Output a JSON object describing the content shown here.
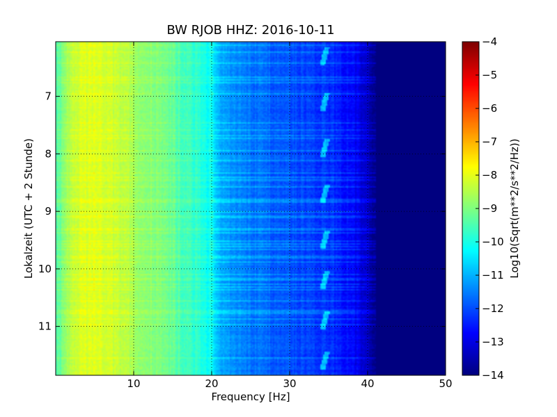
{
  "chart_data": {
    "type": "heatmap",
    "title": "BW RJOB HHZ: 2016-10-11",
    "xlabel": "Frequency [Hz]",
    "ylabel": "Lokalzeit (UTC + 2 Stunde)",
    "xlim": [
      0,
      50
    ],
    "ylim": [
      6.05,
      11.85
    ],
    "y_inverted": true,
    "x_ticks": [
      10,
      20,
      30,
      40,
      50
    ],
    "y_ticks": [
      7,
      8,
      9,
      10,
      11
    ],
    "grid": true,
    "colormap": "jet",
    "colorbar": {
      "label": "Log10(Sqrt(m**2/s**2/Hz))",
      "range": [
        -14,
        -4
      ],
      "ticks": [
        -4,
        -5,
        -6,
        -7,
        -8,
        -9,
        -10,
        -11,
        -12,
        -13,
        -14
      ]
    },
    "spectrum_profile": {
      "frequency_hz": [
        0,
        2,
        5,
        10,
        15,
        20,
        21,
        25,
        30,
        35,
        38,
        40,
        41,
        50
      ],
      "level_log10": [
        -9.6,
        -8.4,
        -8.0,
        -8.6,
        -9.3,
        -10.2,
        -11.1,
        -11.6,
        -12.0,
        -12.3,
        -12.7,
        -13.4,
        -14.0,
        -14.0
      ]
    },
    "periodic_feature": {
      "frequency_hz": 34.5,
      "times_h": [
        6.3,
        7.1,
        7.9,
        8.7,
        9.5,
        10.2,
        10.9,
        11.6
      ]
    }
  }
}
